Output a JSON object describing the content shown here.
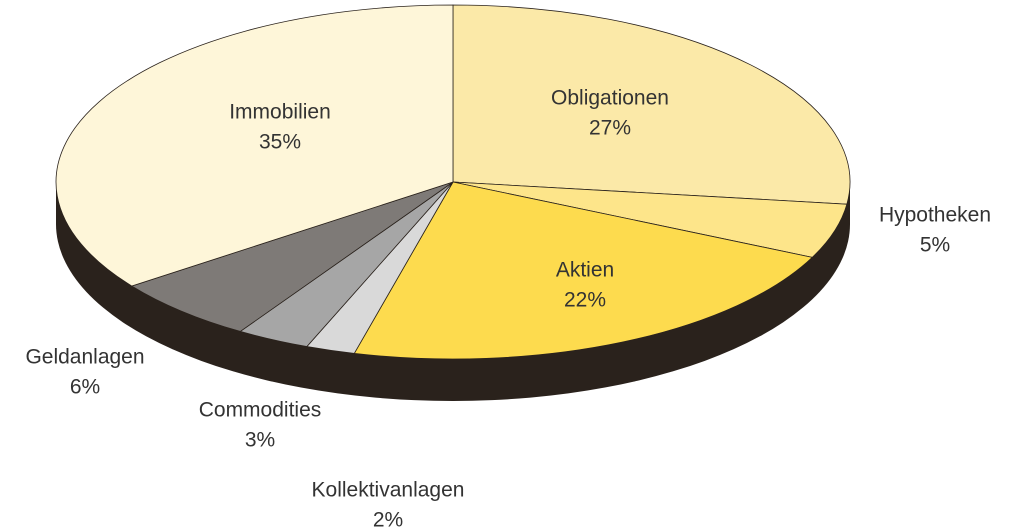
{
  "chart_data": {
    "type": "pie",
    "categories": [
      "Obligationen",
      "Hypotheken",
      "Aktien",
      "Kollektivanlagen",
      "Commodities",
      "Geldanlagen",
      "Immobilien"
    ],
    "values": [
      27,
      5,
      22,
      2,
      3,
      6,
      35
    ],
    "value_labels": [
      "27%",
      "5%",
      "22%",
      "2%",
      "3%",
      "6%",
      "35%"
    ],
    "colors": [
      "#fbe9a8",
      "#fde58a",
      "#fddb4e",
      "#d9d9d9",
      "#a6a6a6",
      "#7e7a77",
      "#fef6d9"
    ]
  }
}
